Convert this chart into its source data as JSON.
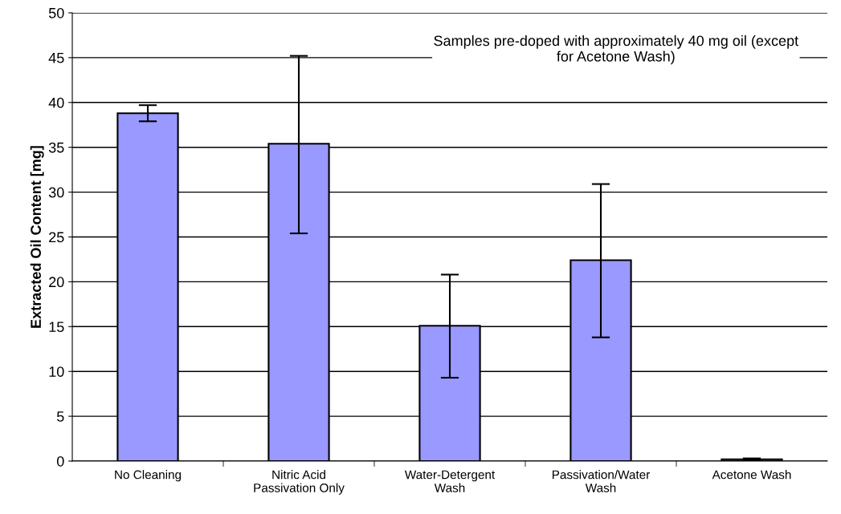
{
  "chart_data": {
    "type": "bar",
    "ylabel": "Extracted Oil Content [mg]",
    "categories": [
      "No Cleaning",
      "Nitric Acid\nPassivation Only",
      "Water-Detergent\nWash",
      "Passivation/Water\nWash",
      "Acetone Wash"
    ],
    "values": [
      38.8,
      35.4,
      15.1,
      22.4,
      0.2
    ],
    "errors": [
      [
        37.9,
        39.7
      ],
      [
        25.4,
        45.2
      ],
      [
        9.3,
        20.8
      ],
      [
        13.8,
        30.9
      ],
      [
        0.1,
        0.3
      ]
    ],
    "color": "#9999ff",
    "ylim": [
      0,
      50
    ],
    "yticks": [
      0,
      5,
      10,
      15,
      20,
      25,
      30,
      35,
      40,
      45,
      50
    ],
    "grid": "y",
    "annotations": [
      "Samples pre-doped with approximately 40 mg oil (except\nfor Acetone Wash)"
    ]
  }
}
